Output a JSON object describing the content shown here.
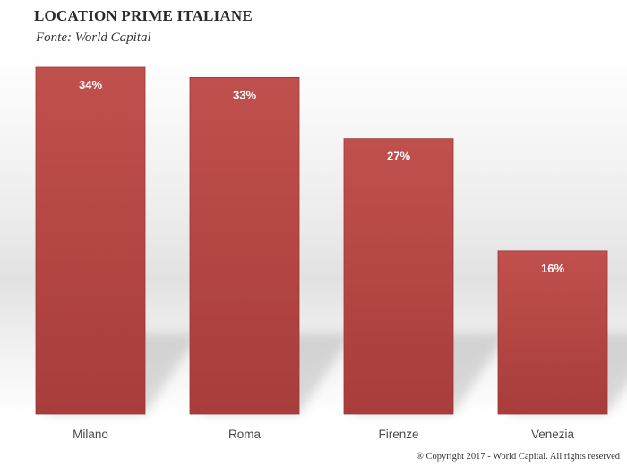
{
  "header": {
    "title": "LOCATION PRIME ITALIANE",
    "subtitle": "Fonte: World Capital"
  },
  "footer": {
    "copyright": "® Copyright 2017 - World Capital. All rights reserved"
  },
  "colors": {
    "bar_top": "#c0504d",
    "bar_bottom": "#a83d3b",
    "label": "#ffffff",
    "category": "#4a4a4a"
  },
  "chart_data": {
    "type": "bar",
    "categories": [
      "Milano",
      "Roma",
      "Firenze",
      "Venezia"
    ],
    "values": [
      34,
      33,
      27,
      16
    ],
    "data_labels": [
      "34%",
      "33%",
      "27%",
      "16%"
    ],
    "title": "LOCATION PRIME ITALIANE",
    "xlabel": "",
    "ylabel": "",
    "ylim": [
      0,
      34
    ],
    "grid": false,
    "legend": "none"
  }
}
